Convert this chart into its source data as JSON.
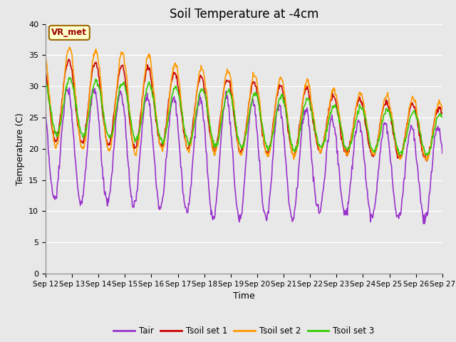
{
  "title": "Soil Temperature at -4cm",
  "xlabel": "Time",
  "ylabel": "Temperature (C)",
  "ylim": [
    0,
    40
  ],
  "yticks": [
    0,
    5,
    10,
    15,
    20,
    25,
    30,
    35,
    40
  ],
  "x_labels": [
    "Sep 12",
    "Sep 13",
    "Sep 14",
    "Sep 15",
    "Sep 16",
    "Sep 17",
    "Sep 18",
    "Sep 19",
    "Sep 20",
    "Sep 21",
    "Sep 22",
    "Sep 23",
    "Sep 24",
    "Sep 25",
    "Sep 26",
    "Sep 27"
  ],
  "colors": {
    "Tair": "#9933cc",
    "Tsoil_set1": "#cc0000",
    "Tsoil_set2": "#ff9900",
    "Tsoil_set3": "#33cc00"
  },
  "fig_bg": "#e8e8e8",
  "plot_bg": "#e8e8e8",
  "grid_color": "#ffffff",
  "annotation_text": "VR_met",
  "annotation_color": "#990000",
  "annotation_bg": "#ffffcc",
  "annotation_border": "#996600",
  "legend_labels": [
    "Tair",
    "Tsoil set 1",
    "Tsoil set 2",
    "Tsoil set 3"
  ],
  "line_width": 1.2,
  "title_fontsize": 12
}
